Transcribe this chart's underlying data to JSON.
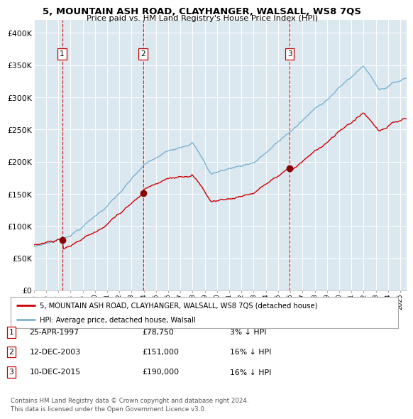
{
  "title": "5, MOUNTAIN ASH ROAD, CLAYHANGER, WALSALL, WS8 7QS",
  "subtitle": "Price paid vs. HM Land Registry's House Price Index (HPI)",
  "x_start_year": 1995.0,
  "x_end_year": 2025.5,
  "y_min": 0,
  "y_max": 420000,
  "y_ticks": [
    0,
    50000,
    100000,
    150000,
    200000,
    250000,
    300000,
    350000,
    400000
  ],
  "y_tick_labels": [
    "£0",
    "£50K",
    "£100K",
    "£150K",
    "£200K",
    "£250K",
    "£300K",
    "£350K",
    "£400K"
  ],
  "plot_bg_color": "#dce8f0",
  "grid_color": "#ffffff",
  "hpi_line_color": "#7ab3d4",
  "price_line_color": "#cc0000",
  "sale_marker_color": "#880000",
  "vline_color": "#cc0000",
  "sale_points": [
    {
      "year": 1997.32,
      "price": 78750,
      "label": "1"
    },
    {
      "year": 2003.95,
      "price": 151000,
      "label": "2"
    },
    {
      "year": 2015.95,
      "price": 190000,
      "label": "3"
    }
  ],
  "legend_entries": [
    "5, MOUNTAIN ASH ROAD, CLAYHANGER, WALSALL, WS8 7QS (detached house)",
    "HPI: Average price, detached house, Walsall"
  ],
  "table_rows": [
    {
      "num": "1",
      "date": "25-APR-1997",
      "price": "£78,750",
      "hpi": "3% ↓ HPI"
    },
    {
      "num": "2",
      "date": "12-DEC-2003",
      "price": "£151,000",
      "hpi": "16% ↓ HPI"
    },
    {
      "num": "3",
      "date": "10-DEC-2015",
      "price": "£190,000",
      "hpi": "16% ↓ HPI"
    }
  ],
  "footer": "Contains HM Land Registry data © Crown copyright and database right 2024.\nThis data is licensed under the Open Government Licence v3.0.",
  "x_tick_years": [
    1995,
    1996,
    1997,
    1998,
    1999,
    2000,
    2001,
    2002,
    2003,
    2004,
    2005,
    2006,
    2007,
    2008,
    2009,
    2010,
    2011,
    2012,
    2013,
    2014,
    2015,
    2016,
    2017,
    2018,
    2019,
    2020,
    2021,
    2022,
    2023,
    2024,
    2025
  ]
}
